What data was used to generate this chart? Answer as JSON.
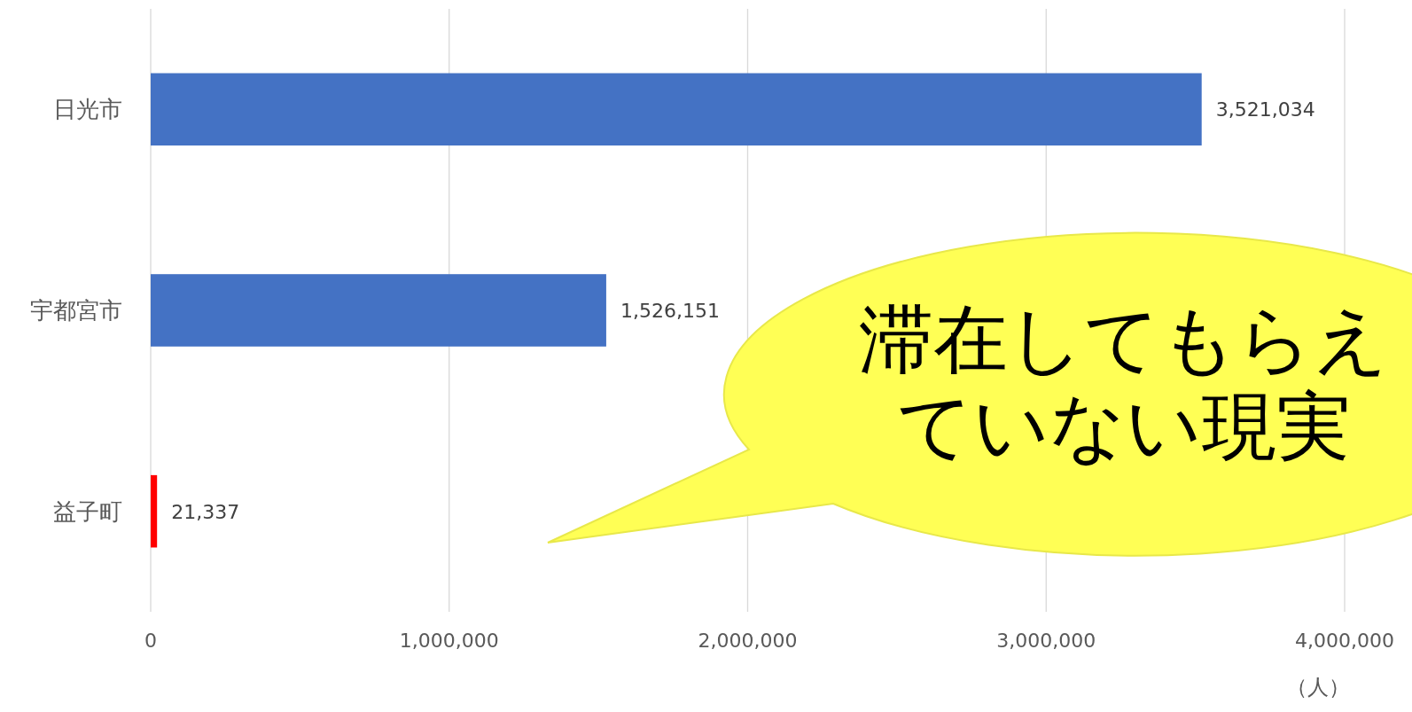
{
  "chart_data": {
    "type": "bar",
    "orientation": "horizontal",
    "categories": [
      "日光市",
      "宇都宮市",
      "益子町"
    ],
    "values": [
      3521034,
      1526151,
      21337
    ],
    "colors": [
      "#4472c4",
      "#4472c4",
      "#ff0000"
    ],
    "xlim": [
      0,
      4000000
    ],
    "xticks": [
      0,
      {
        "value": 1000000,
        "label": "1,000,000"
      },
      {
        "value": 2000000,
        "label": "2,000,000"
      },
      {
        "value": 3000000,
        "label": "3,000,000"
      },
      {
        "value": 4000000,
        "label": "4,000,000"
      }
    ],
    "xlabel": "（人）",
    "grid": "x",
    "value_labels": [
      "3,521,034",
      "1,526,151",
      "21,337"
    ],
    "annotations": [
      "滞在してもらえ",
      "ていない現実"
    ]
  }
}
